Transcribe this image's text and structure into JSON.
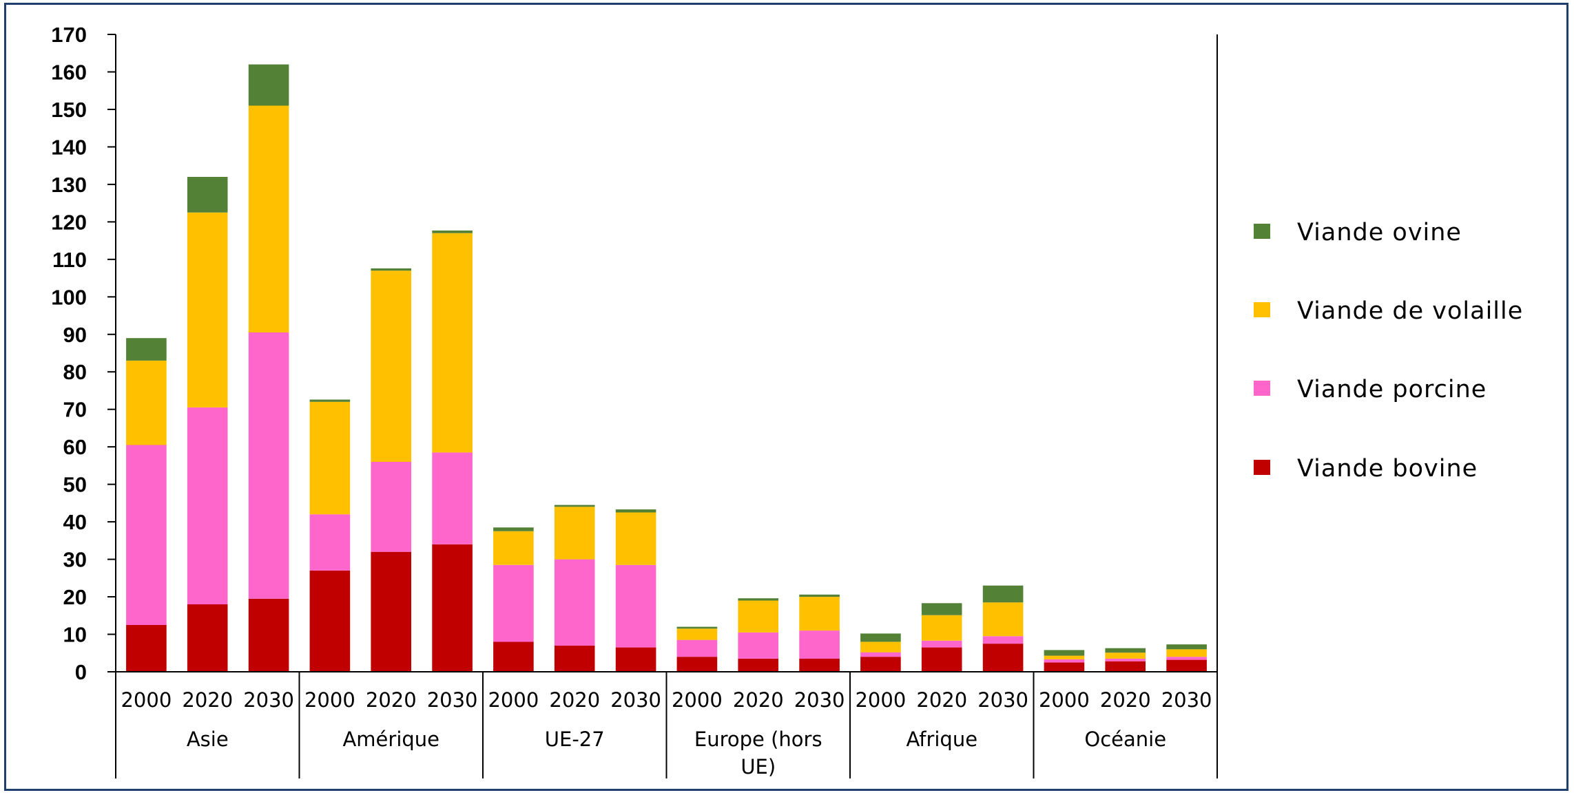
{
  "chart_data": {
    "type": "bar",
    "stacked": true,
    "ylim": [
      0,
      170
    ],
    "yticks": [
      0,
      10,
      20,
      30,
      40,
      50,
      60,
      70,
      80,
      90,
      100,
      110,
      120,
      130,
      140,
      150,
      160,
      170
    ],
    "grid": false,
    "legend_position": "right",
    "groups": [
      "Asie",
      "Amérique",
      "UE-27",
      "Europe (hors UE)",
      "Afrique",
      "Océanie"
    ],
    "years": [
      "2000",
      "2020",
      "2030"
    ],
    "series": [
      {
        "name": "Viande bovine",
        "color": "#c00000",
        "values": [
          12.5,
          18,
          19.5,
          27,
          32,
          34,
          8,
          7,
          6.5,
          4,
          3.5,
          3.5,
          4,
          6.5,
          7.5,
          2.5,
          2.8,
          3.2
        ]
      },
      {
        "name": "Viande porcine",
        "color": "#ff66cc",
        "values": [
          48,
          52.5,
          71,
          15,
          24,
          24.5,
          20.5,
          23,
          22,
          4.5,
          7,
          7.5,
          1.2,
          1.8,
          2,
          0.8,
          0.7,
          0.8
        ]
      },
      {
        "name": "Viande de volaille",
        "color": "#ffc000",
        "values": [
          22.5,
          52,
          60.5,
          30,
          51,
          58.5,
          9,
          14,
          14,
          3,
          8.5,
          9,
          2.8,
          6.8,
          9,
          1,
          1.6,
          2
        ]
      },
      {
        "name": "Viande ovine",
        "color": "#538135",
        "values": [
          6,
          9.5,
          11,
          0.6,
          0.6,
          0.7,
          1,
          0.5,
          0.8,
          0.5,
          0.6,
          0.6,
          2.2,
          3.2,
          4.5,
          1.5,
          1.2,
          1.3
        ]
      }
    ]
  }
}
